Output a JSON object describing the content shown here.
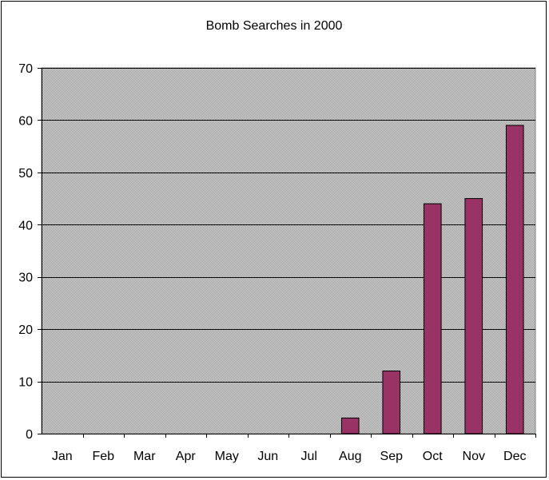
{
  "chart_data": {
    "type": "bar",
    "title": "Bomb Searches in 2000",
    "xlabel": "",
    "ylabel": "",
    "categories": [
      "Jan",
      "Feb",
      "Mar",
      "Apr",
      "May",
      "Jun",
      "Jul",
      "Aug",
      "Sep",
      "Oct",
      "Nov",
      "Dec"
    ],
    "values": [
      0,
      0,
      0,
      0,
      0,
      0,
      0,
      3,
      12,
      44,
      45,
      59
    ],
    "ylim": [
      0,
      70
    ],
    "yticks": [
      "0",
      "10",
      "20",
      "30",
      "40",
      "50",
      "60",
      "70"
    ],
    "grid": true,
    "legend": "none",
    "colors": {
      "bar_fill": "#993366",
      "bar_stroke": "#000000",
      "plot_background": "#c0c0c0",
      "gridline": "#000000"
    }
  }
}
